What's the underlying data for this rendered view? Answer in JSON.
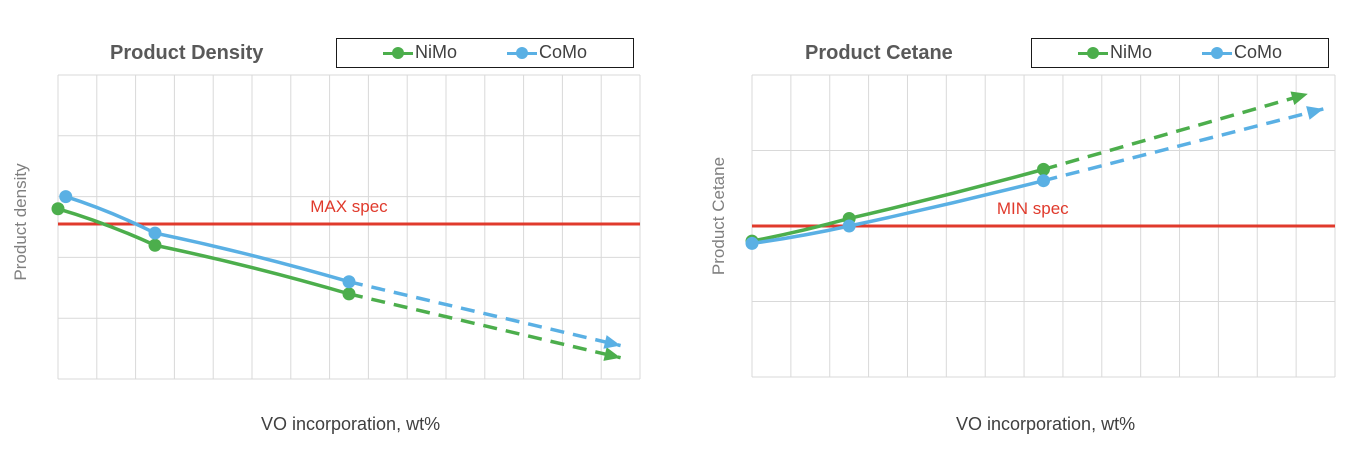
{
  "colors": {
    "nimo": "#4cae4c",
    "como": "#5ab0e4",
    "spec": "#e03a2c",
    "grid": "#d9d9d9"
  },
  "chart_data": [
    {
      "type": "line",
      "title": "Product Density",
      "xlabel": "VO incorporation, wt%",
      "ylabel": "Product density",
      "legend": [
        "NiMo",
        "CoMo"
      ],
      "legend_position": "top-right",
      "grid": true,
      "xlim": [
        0,
        15
      ],
      "ylim": [
        0,
        5
      ],
      "spec": {
        "label": "MAX spec",
        "y": 2.55
      },
      "series": [
        {
          "name": "NiMo",
          "points": [
            [
              0,
              2.8
            ],
            [
              2.5,
              2.2
            ],
            [
              7.5,
              1.4
            ]
          ],
          "dashed": [
            [
              7.5,
              1.4
            ],
            [
              14.5,
              0.35
            ]
          ]
        },
        {
          "name": "CoMo",
          "points": [
            [
              0.2,
              3.0
            ],
            [
              2.5,
              2.4
            ],
            [
              7.5,
              1.6
            ]
          ],
          "dashed": [
            [
              7.5,
              1.6
            ],
            [
              14.5,
              0.55
            ]
          ]
        }
      ]
    },
    {
      "type": "line",
      "title": "Product Cetane",
      "xlabel": "VO incorporation, wt%",
      "ylabel": "Product Cetane",
      "legend": [
        "NiMo",
        "CoMo"
      ],
      "legend_position": "top-right",
      "grid": true,
      "xlim": [
        0,
        15
      ],
      "ylim": [
        0,
        4
      ],
      "spec": {
        "label": "MIN spec",
        "y": 2.0
      },
      "series": [
        {
          "name": "NiMo",
          "points": [
            [
              0,
              1.8
            ],
            [
              2.5,
              2.1
            ],
            [
              7.5,
              2.75
            ]
          ],
          "dashed": [
            [
              7.5,
              2.75
            ],
            [
              14.3,
              3.75
            ]
          ]
        },
        {
          "name": "CoMo",
          "points": [
            [
              0,
              1.77
            ],
            [
              2.5,
              2.0
            ],
            [
              7.5,
              2.6
            ]
          ],
          "dashed": [
            [
              7.5,
              2.6
            ],
            [
              14.7,
              3.55
            ]
          ]
        }
      ]
    }
  ]
}
